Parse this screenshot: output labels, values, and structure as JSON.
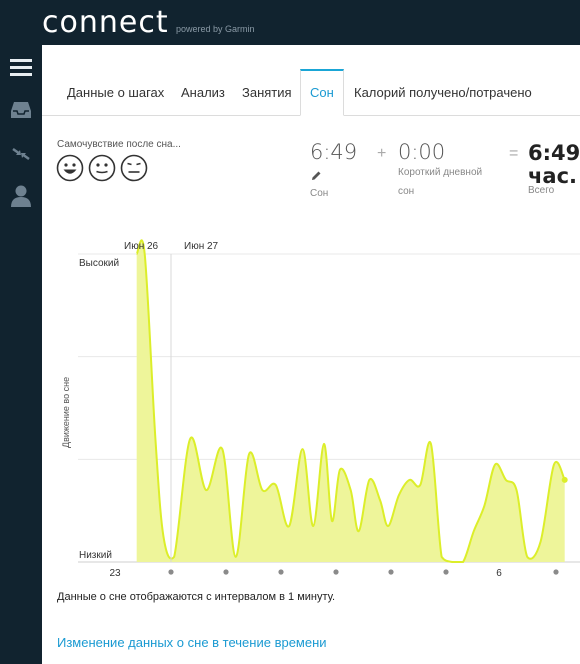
{
  "brand": {
    "logo": "connect",
    "powered": "powered by Garmin"
  },
  "sidebar": {
    "items": [
      {
        "icon": "menu-icon"
      },
      {
        "icon": "inbox-icon"
      },
      {
        "icon": "sync-arrows-icon"
      },
      {
        "icon": "user-icon"
      }
    ]
  },
  "tabs": [
    {
      "label": "Данные о шагах",
      "active": false
    },
    {
      "label": "Анализ",
      "active": false
    },
    {
      "label": "Занятия",
      "active": false
    },
    {
      "label": "Сон",
      "active": true
    },
    {
      "label": "Калорий получено/потрачено",
      "active": false
    }
  ],
  "feeling": {
    "label": "Самочувствие после сна...",
    "faces": [
      "happy-face-icon",
      "neutral-face-icon",
      "sad-face-icon"
    ]
  },
  "summary": {
    "sleep_value": "6:49",
    "sleep_label": "Сон",
    "plus": "+",
    "nap_value": "0:00",
    "nap_label_1": "Короткий дневной",
    "nap_label_2": "сон",
    "equals": "=",
    "total_value": "6:49",
    "total_unit": "час.",
    "total_label": "Всего"
  },
  "chart_data": {
    "type": "area",
    "title": "",
    "xlabel": "",
    "ylabel": "Движение во сне",
    "y_ticks": [
      "Высокий",
      "Низкий"
    ],
    "ylim": [
      0,
      3
    ],
    "date_labels": [
      "Июн 26",
      "Июн 27"
    ],
    "x_tick_labels": [
      "23",
      "6"
    ],
    "xlim": [
      22.95,
      6.8
    ],
    "x": [
      23.0,
      23.15,
      23.35,
      23.5,
      23.7,
      24.0,
      24.3,
      24.6,
      24.85,
      25.1,
      25.35,
      25.6,
      25.85,
      26.1,
      26.3,
      26.5,
      26.65,
      26.8,
      27.0,
      27.15,
      27.35,
      27.55,
      27.7,
      27.9,
      28.1,
      28.3,
      28.5,
      28.7,
      28.9,
      29.1,
      29.3,
      29.5,
      29.7,
      29.9,
      30.1,
      30.3,
      30.55,
      30.8,
      31.0
    ],
    "values": [
      3.0,
      3.0,
      1.2,
      0.25,
      0.05,
      1.2,
      0.7,
      1.1,
      0.05,
      1.05,
      0.7,
      0.75,
      0.35,
      1.1,
      0.35,
      1.15,
      0.4,
      0.9,
      0.7,
      0.3,
      0.8,
      0.6,
      0.35,
      0.65,
      0.8,
      0.75,
      1.15,
      0.05,
      0.0,
      0.0,
      0.3,
      0.55,
      0.95,
      0.8,
      0.7,
      0.05,
      0.2,
      0.95,
      0.8
    ],
    "line_color": "#dcee2a",
    "fill_color": "#eef59a",
    "grid": true
  },
  "note": "Данные о сне отображаются с интервалом в 1 минуту.",
  "link": "Изменение данных о сне в течение времени"
}
